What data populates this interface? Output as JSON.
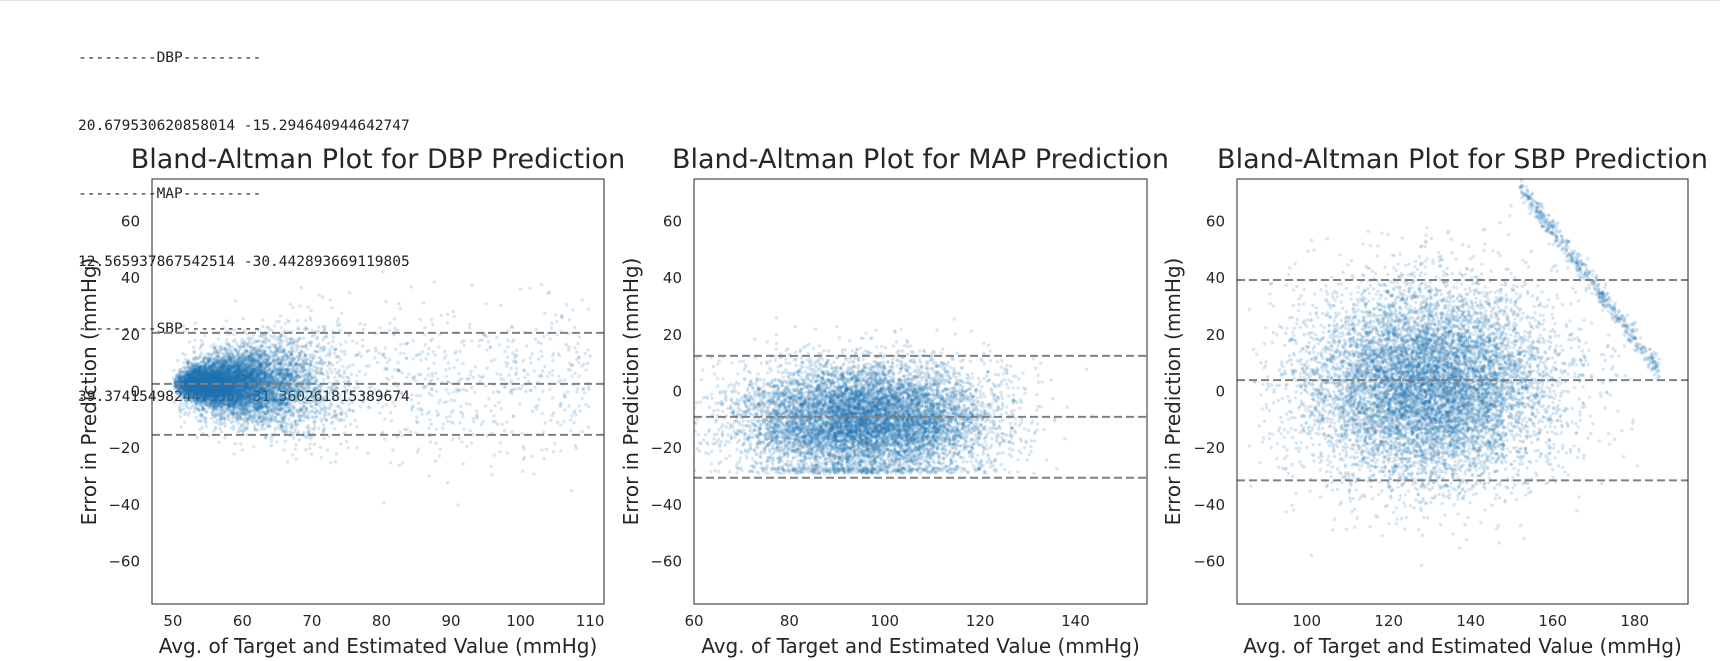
{
  "console_output": [
    "---------DBP---------",
    "20.679530620858014 -15.294640944642747",
    "---------MAP---------",
    "12.565937867542514 -30.442893669119805",
    "---------SBP---------",
    "39.374154982447955 -31.360261815389674"
  ],
  "chart_data": [
    {
      "type": "scatter",
      "title": "Bland-Altman Plot for DBP Prediction",
      "xlabel": "Avg. of Target and Estimated Value (mmHg)",
      "ylabel": "Error in Prediction (mmHg)",
      "xlim": [
        47,
        112
      ],
      "ylim": [
        -75,
        75
      ],
      "xticks": [
        50,
        60,
        70,
        80,
        90,
        100,
        110
      ],
      "yticks": [
        -60,
        -40,
        -20,
        0,
        20,
        40,
        60
      ],
      "hlines": [
        20.68,
        2.69,
        -15.29
      ],
      "grid": false,
      "point_color": "#1f77b4",
      "cloud": {
        "x_min": 50,
        "x_dense_max": 82,
        "x_sparse_max": 110,
        "mean": 2.7,
        "spread_start": 1.5,
        "spread_end": 14,
        "n": 9000
      }
    },
    {
      "type": "scatter",
      "title": "Bland-Altman Plot for MAP Prediction",
      "xlabel": "Avg. of Target and Estimated Value (mmHg)",
      "ylabel": "Error in Prediction (mmHg)",
      "xlim": [
        60,
        155
      ],
      "ylim": [
        -75,
        75
      ],
      "xticks": [
        60,
        80,
        100,
        120,
        140
      ],
      "yticks": [
        -60,
        -40,
        -20,
        0,
        20,
        40,
        60
      ],
      "hlines": [
        12.57,
        -8.94,
        -30.44
      ],
      "grid": false,
      "point_color": "#1f77b4",
      "cloud": {
        "x_center": 96,
        "x_spread": 13,
        "y_center": -10,
        "y_spread": 10,
        "y_min": -29,
        "y_max": 29,
        "n": 9000
      }
    },
    {
      "type": "scatter",
      "title": "Bland-Altman Plot for SBP Prediction",
      "xlabel": "Avg. of Target and Estimated Value (mmHg)",
      "ylabel": "Error in Prediction (mmHg)",
      "xlim": [
        83,
        193
      ],
      "ylim": [
        -75,
        75
      ],
      "xticks": [
        100,
        120,
        140,
        160,
        180
      ],
      "yticks": [
        -60,
        -40,
        -20,
        0,
        20,
        40,
        60
      ],
      "hlines": [
        39.37,
        4.01,
        -31.36
      ],
      "grid": false,
      "point_color": "#1f77b4",
      "cloud": {
        "x_center": 130,
        "x_spread": 15,
        "y_center": 2,
        "y_spread": 17,
        "n": 10000
      }
    }
  ]
}
